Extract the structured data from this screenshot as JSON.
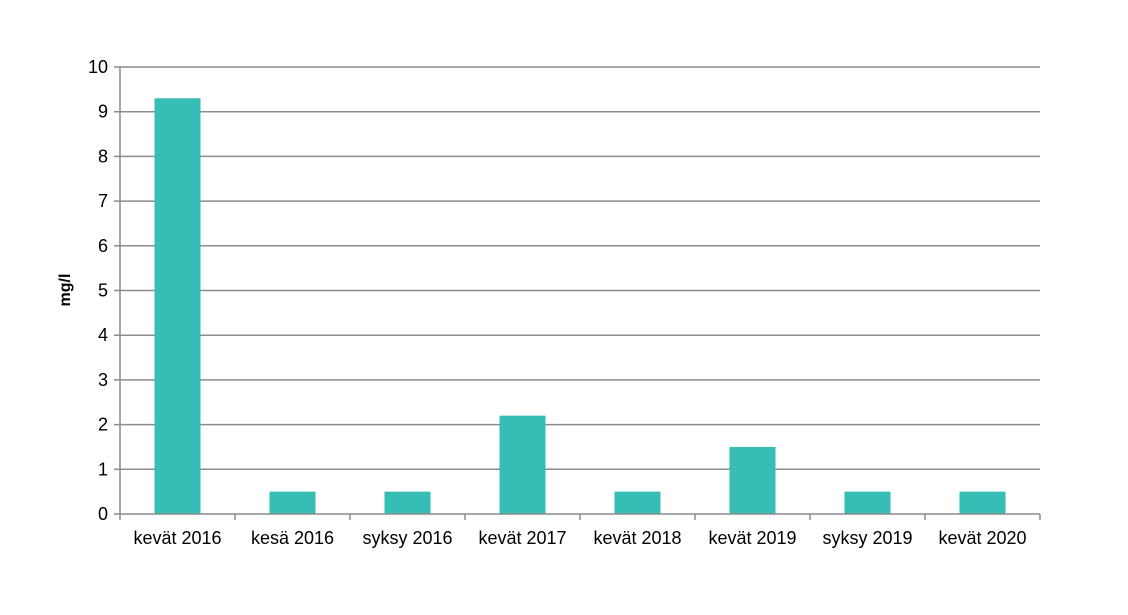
{
  "chart_data": {
    "type": "bar",
    "title": "",
    "xlabel": "",
    "ylabel": "mg/l",
    "ylim": [
      0,
      10
    ],
    "yticks": [
      0,
      1,
      2,
      3,
      4,
      5,
      6,
      7,
      8,
      9,
      10
    ],
    "grid": true,
    "legend": "none",
    "bar_color": "#35BDB6",
    "categories": [
      "kevät 2016",
      "kesä 2016",
      "syksy 2016",
      "kevät 2017",
      "kevät 2018",
      "kevät 2019",
      "syksy 2019",
      "kevät 2020"
    ],
    "values": [
      9.3,
      0.5,
      0.5,
      2.2,
      0.5,
      1.5,
      0.5,
      0.5
    ]
  }
}
